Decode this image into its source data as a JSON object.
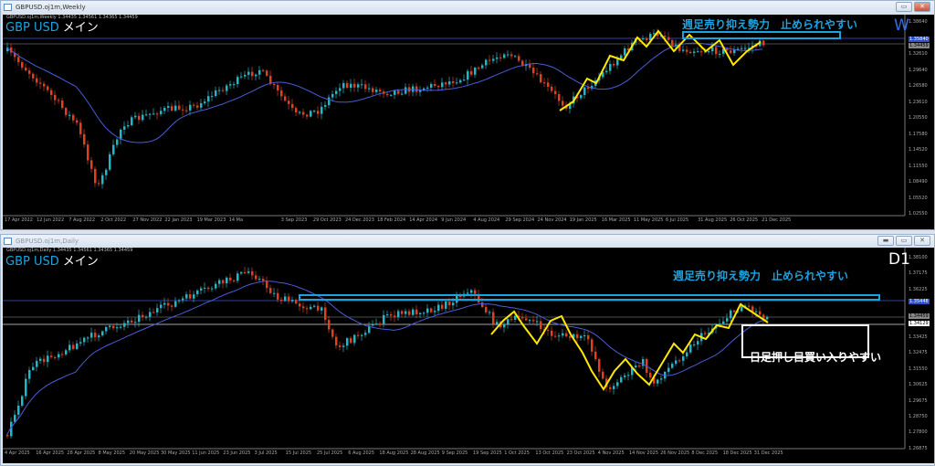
{
  "weekly": {
    "window_title": "GBPUSD.oj1m,Weekly",
    "header": "GBPUSD.oj1m,Weekly  1.34435 1.34561 1.34365 1.34459",
    "symbol": "GBP USD",
    "symbol_suffix": "メイン",
    "timeframe": "W",
    "note": "週足売り抑え勢力　止められやすい",
    "price_labels": [
      "1.38640",
      "1.32610",
      "1.29640",
      "1.26580",
      "1.23610",
      "1.20550",
      "1.17580",
      "1.14520",
      "1.11550",
      "1.08490",
      "1.05520",
      "1.02550"
    ],
    "price_highlight": "1.35840",
    "price_current": "1.34459",
    "dates": [
      "17 Apr 2022",
      "12 Jun 2022",
      "7 Aug 2022",
      "2 Oct 2022",
      "27 Nov 2022",
      "22 Jan 2023",
      "19 Mar 2023",
      "14 Ma",
      "3 Sep 2023",
      "29 Oct 2023",
      "24 Dec 2023",
      "18 Feb 2024",
      "14 Apr 2024",
      "9 Jun 2024",
      "4 Aug 2024",
      "29 Sep 2024",
      "24 Nov 2024",
      "19 Jan 2025",
      "16 Mar 2025",
      "11 May 2025",
      "6 Jul 2025",
      "31 Aug 2025",
      "26 Oct 2025",
      "21 Dec 2025"
    ]
  },
  "daily": {
    "window_title": "GBPUSD.oj1m,Daily",
    "header": "GBPUSD.oj1m,Daily  1.34435 1.34561 1.34365 1.34459",
    "symbol": "GBP USD",
    "symbol_suffix": "メイン",
    "timeframe": "D1",
    "note_top": "週足売り抑え勢力　止められやすい",
    "note_bottom": "日足押し目買い入りやすい",
    "price_labels": [
      "1.38100",
      "1.37175",
      "1.36225",
      "1.33425",
      "1.32475",
      "1.31550",
      "1.30625",
      "1.29675",
      "1.28750",
      "1.27800",
      "1.26875"
    ],
    "price_highlight": "1.35448",
    "price_current": "1.34459",
    "price_line": "1.34129",
    "dates": [
      "4 Apr 2025",
      "16 Apr 2025",
      "28 Apr 2025",
      "8 May 2025",
      "20 May 2025",
      "30 May 2025",
      "11 Jun 2025",
      "23 Jun 2025",
      "3 Jul 2025",
      "15 Jul 2025",
      "25 Jul 2025",
      "6 Aug 2025",
      "18 Aug 2025",
      "28 Aug 2025",
      "9 Sep 2025",
      "19 Sep 2025",
      "1 Oct 2025",
      "13 Oct 2025",
      "23 Oct 2025",
      "4 Nov 2025",
      "14 Nov 2025",
      "26 Nov 2025",
      "8 Dec 2025",
      "18 Dec 2025",
      "31 Dec 2025"
    ]
  },
  "colors": {
    "bull": "#1fb8c8",
    "bear": "#e0401c",
    "ma": "#4a5cd8",
    "zigzag": "#ffe800",
    "annotation": "#1aa3e0"
  }
}
